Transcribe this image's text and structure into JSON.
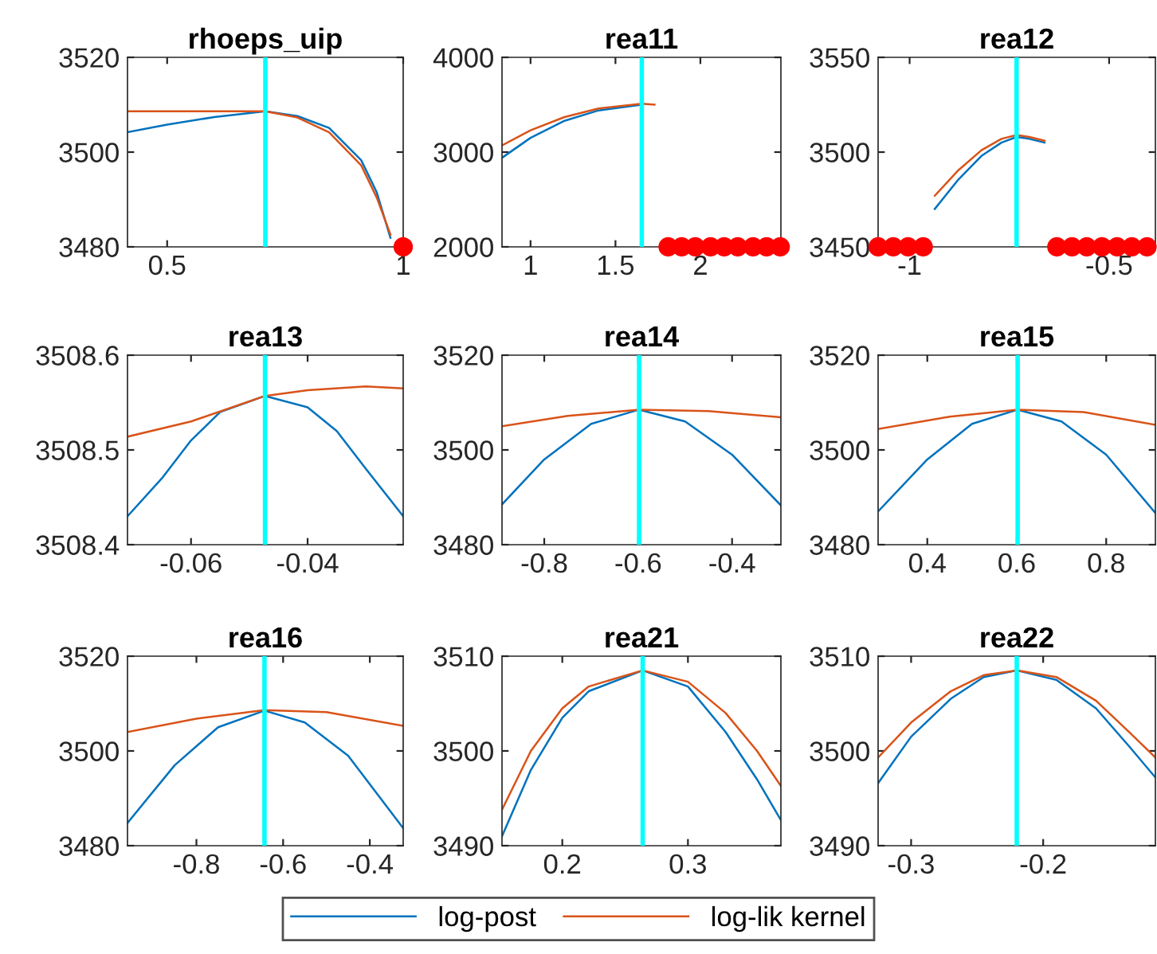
{
  "chart_data": [
    {
      "type": "line",
      "title": "rhoeps_uip",
      "xlim": [
        0.416,
        1
      ],
      "ylim": [
        3480,
        3520
      ],
      "xticks": [
        0.5,
        1
      ],
      "yticks": [
        3480,
        3500,
        3520
      ],
      "legend": "bottom",
      "ref_lines": [
        {
          "axis": "x",
          "value": 0.708,
          "color": "#00ffff"
        }
      ],
      "series": [
        {
          "name": "log-post",
          "color": "#0072bd",
          "x": [
            0.416,
            0.5,
            0.6,
            0.708,
            0.776,
            0.843,
            0.911,
            0.944,
            0.973
          ],
          "values": [
            3504.2,
            3505.8,
            3507.4,
            3508.6,
            3507.6,
            3505.1,
            3498.3,
            3491.5,
            3481.9
          ]
        },
        {
          "name": "log-lik kernel",
          "color": "#d95319",
          "x": [
            0.416,
            0.5,
            0.6,
            0.708,
            0.776,
            0.843,
            0.911,
            0.944,
            0.973
          ],
          "values": [
            3508.6,
            3508.6,
            3508.6,
            3508.6,
            3507.3,
            3504.2,
            3497.2,
            3490.4,
            3482.6
          ]
        },
        {
          "type": "scatter",
          "marker": "circle",
          "color": "#ff0000",
          "x": [
            1.0
          ],
          "values": [
            3480
          ]
        }
      ]
    },
    {
      "type": "line",
      "title": "rea11",
      "xlim": [
        0.832,
        2.474
      ],
      "ylim": [
        2000,
        4000
      ],
      "xticks": [
        1,
        1.5,
        2
      ],
      "yticks": [
        2000,
        3000,
        4000
      ],
      "ref_lines": [
        {
          "axis": "x",
          "value": 1.655,
          "color": "#00ffff"
        }
      ],
      "series": [
        {
          "color": "#0072bd",
          "x": [
            0.832,
            1.0,
            1.2,
            1.4,
            1.655
          ],
          "values": [
            2940,
            3150,
            3330,
            3440,
            3500
          ]
        },
        {
          "color": "#d95319",
          "x": [
            0.832,
            1.0,
            1.2,
            1.4,
            1.655,
            1.73
          ],
          "values": [
            3070,
            3230,
            3370,
            3460,
            3510,
            3500
          ]
        },
        {
          "type": "scatter",
          "marker": "circle",
          "color": "#ff0000",
          "x": [
            1.81,
            1.89,
            1.97,
            2.06,
            2.14,
            2.22,
            2.31,
            2.39,
            2.47
          ],
          "values": [
            2000,
            2000,
            2000,
            2000,
            2000,
            2000,
            2000,
            2000,
            2000
          ]
        }
      ]
    },
    {
      "type": "line",
      "title": "rea12",
      "xlim": [
        -1.079,
        -0.384
      ],
      "ylim": [
        3450,
        3550
      ],
      "xticks": [
        -1,
        -0.5
      ],
      "yticks": [
        3450,
        3500,
        3550
      ],
      "ref_lines": [
        {
          "axis": "x",
          "value": -0.732,
          "color": "#00ffff"
        }
      ],
      "series": [
        {
          "color": "#0072bd",
          "x": [
            -0.937,
            -0.88,
            -0.82,
            -0.77,
            -0.732,
            -0.7,
            -0.662
          ],
          "values": [
            3470,
            3485,
            3498,
            3505,
            3508,
            3507,
            3505
          ]
        },
        {
          "color": "#d95319",
          "x": [
            -0.937,
            -0.88,
            -0.82,
            -0.77,
            -0.732,
            -0.7,
            -0.662
          ],
          "values": [
            3477,
            3490,
            3501,
            3507,
            3509,
            3508,
            3506
          ]
        },
        {
          "type": "scatter",
          "marker": "circle",
          "color": "#ff0000",
          "x": [
            -1.079,
            -1.041,
            -1.004,
            -0.966,
            -0.631,
            -0.593,
            -0.556,
            -0.518,
            -0.48,
            -0.443,
            -0.405
          ],
          "values": [
            3450,
            3450,
            3450,
            3450,
            3450,
            3450,
            3450,
            3450,
            3450,
            3450,
            3450
          ]
        }
      ]
    },
    {
      "type": "line",
      "title": "rea13",
      "xlim": [
        -0.0709,
        -0.0236
      ],
      "ylim": [
        3508.4,
        3508.6
      ],
      "xticks": [
        -0.06,
        -0.04
      ],
      "yticks": [
        3508.4,
        3508.5,
        3508.6
      ],
      "ref_lines": [
        {
          "axis": "x",
          "value": -0.0473,
          "color": "#00ffff"
        }
      ],
      "series": [
        {
          "color": "#0072bd",
          "x": [
            -0.0709,
            -0.065,
            -0.06,
            -0.055,
            -0.0473,
            -0.04,
            -0.035,
            -0.03,
            -0.0236
          ],
          "values": [
            3508.43,
            3508.47,
            3508.51,
            3508.54,
            3508.557,
            3508.545,
            3508.52,
            3508.48,
            3508.43
          ]
        },
        {
          "color": "#d95319",
          "x": [
            -0.0709,
            -0.06,
            -0.0473,
            -0.04,
            -0.03,
            -0.0236
          ],
          "values": [
            3508.514,
            3508.53,
            3508.557,
            3508.563,
            3508.567,
            3508.565
          ]
        }
      ]
    },
    {
      "type": "line",
      "title": "rea14",
      "xlim": [
        -0.89,
        -0.296
      ],
      "ylim": [
        3480,
        3520
      ],
      "xticks": [
        -0.8,
        -0.6,
        -0.4
      ],
      "yticks": [
        3480,
        3500,
        3520
      ],
      "ref_lines": [
        {
          "axis": "x",
          "value": -0.598,
          "color": "#00ffff"
        }
      ],
      "series": [
        {
          "color": "#0072bd",
          "x": [
            -0.89,
            -0.8,
            -0.7,
            -0.598,
            -0.5,
            -0.4,
            -0.296
          ],
          "values": [
            3488.5,
            3498,
            3505.5,
            3508.5,
            3506,
            3499,
            3488.3
          ]
        },
        {
          "color": "#d95319",
          "x": [
            -0.89,
            -0.75,
            -0.598,
            -0.45,
            -0.296
          ],
          "values": [
            3505,
            3507.2,
            3508.5,
            3508.2,
            3506.9
          ]
        }
      ]
    },
    {
      "type": "line",
      "title": "rea15",
      "xlim": [
        0.29,
        0.91
      ],
      "ylim": [
        3480,
        3520
      ],
      "xticks": [
        0.4,
        0.6,
        0.8
      ],
      "yticks": [
        3480,
        3500,
        3520
      ],
      "ref_lines": [
        {
          "axis": "x",
          "value": 0.602,
          "color": "#00ffff"
        }
      ],
      "series": [
        {
          "color": "#0072bd",
          "x": [
            0.29,
            0.4,
            0.5,
            0.602,
            0.7,
            0.8,
            0.91
          ],
          "values": [
            3487,
            3498,
            3505.5,
            3508.5,
            3506,
            3499,
            3486.7
          ]
        },
        {
          "color": "#d95319",
          "x": [
            0.29,
            0.45,
            0.602,
            0.75,
            0.91
          ],
          "values": [
            3504.4,
            3507,
            3508.5,
            3508,
            3505.3
          ]
        }
      ]
    },
    {
      "type": "line",
      "title": "rea16",
      "xlim": [
        -0.959,
        -0.323
      ],
      "ylim": [
        3480,
        3520
      ],
      "xticks": [
        -0.8,
        -0.6,
        -0.4
      ],
      "yticks": [
        3480,
        3500,
        3520
      ],
      "ref_lines": [
        {
          "axis": "x",
          "value": -0.643,
          "color": "#00ffff"
        }
      ],
      "series": [
        {
          "color": "#0072bd",
          "x": [
            -0.959,
            -0.85,
            -0.75,
            -0.643,
            -0.55,
            -0.45,
            -0.323
          ],
          "values": [
            3484.8,
            3497,
            3505,
            3508.5,
            3506,
            3499,
            3483.7
          ]
        },
        {
          "color": "#d95319",
          "x": [
            -0.959,
            -0.8,
            -0.643,
            -0.5,
            -0.323
          ],
          "values": [
            3504,
            3506.8,
            3508.6,
            3508.2,
            3505.3
          ]
        }
      ]
    },
    {
      "type": "line",
      "title": "rea21",
      "xlim": [
        0.152,
        0.374
      ],
      "ylim": [
        3490,
        3510
      ],
      "xticks": [
        0.2,
        0.3
      ],
      "yticks": [
        3490,
        3500,
        3510
      ],
      "ref_lines": [
        {
          "axis": "x",
          "value": 0.264,
          "color": "#00ffff"
        }
      ],
      "series": [
        {
          "color": "#0072bd",
          "x": [
            0.152,
            0.175,
            0.2,
            0.221,
            0.264,
            0.3,
            0.33,
            0.355,
            0.374
          ],
          "values": [
            3491,
            3498,
            3503.5,
            3506.3,
            3508.5,
            3506.8,
            3502,
            3497,
            3492.7
          ]
        },
        {
          "color": "#d95319",
          "x": [
            0.152,
            0.175,
            0.2,
            0.221,
            0.264,
            0.3,
            0.33,
            0.355,
            0.374
          ],
          "values": [
            3493.8,
            3500,
            3504.5,
            3506.8,
            3508.5,
            3507.3,
            3504,
            3500,
            3496.3
          ]
        }
      ]
    },
    {
      "type": "line",
      "title": "rea22",
      "xlim": [
        -0.325,
        -0.115
      ],
      "ylim": [
        3490,
        3510
      ],
      "xticks": [
        -0.3,
        -0.2
      ],
      "yticks": [
        3490,
        3500,
        3510
      ],
      "ref_lines": [
        {
          "axis": "x",
          "value": -0.22,
          "color": "#00ffff"
        }
      ],
      "series": [
        {
          "color": "#0072bd",
          "x": [
            -0.325,
            -0.3,
            -0.27,
            -0.245,
            -0.22,
            -0.19,
            -0.16,
            -0.135,
            -0.115
          ],
          "values": [
            3496.6,
            3501.5,
            3505.5,
            3507.8,
            3508.5,
            3507.5,
            3504.5,
            3500.5,
            3497.2
          ]
        },
        {
          "color": "#d95319",
          "x": [
            -0.325,
            -0.3,
            -0.27,
            -0.245,
            -0.22,
            -0.19,
            -0.16,
            -0.135,
            -0.115
          ],
          "values": [
            3499.3,
            3503,
            3506.3,
            3508,
            3508.5,
            3507.8,
            3505.3,
            3502,
            3499.3
          ]
        }
      ]
    }
  ]
}
